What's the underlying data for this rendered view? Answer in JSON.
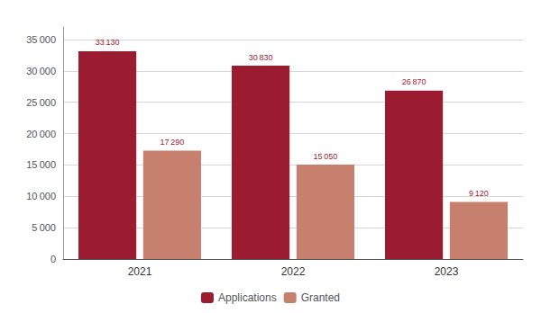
{
  "chart_data": {
    "type": "bar",
    "categories": [
      "2021",
      "2022",
      "2023"
    ],
    "series": [
      {
        "name": "Applications",
        "color": "#9B1B30",
        "values": [
          33130,
          30830,
          26870
        ],
        "value_labels": [
          "33 130",
          "30 830",
          "26 870"
        ]
      },
      {
        "name": "Granted",
        "color": "#C8806E",
        "values": [
          17290,
          15050,
          9120
        ],
        "value_labels": [
          "17 290",
          "15 050",
          "9 120"
        ]
      }
    ],
    "ylim": [
      0,
      37000
    ],
    "yticks": [
      0,
      {
        "value": 5000,
        "label": "5 000"
      },
      {
        "value": 10000,
        "label": "10 000"
      },
      {
        "value": 15000,
        "label": "15 000"
      },
      {
        "value": 20000,
        "label": "20 000"
      },
      {
        "value": 25000,
        "label": "25 000"
      },
      {
        "value": 30000,
        "label": "30 000"
      },
      {
        "value": 35000,
        "label": "35 000"
      }
    ],
    "grid": true,
    "legend": "bottom",
    "data_labels": true
  }
}
